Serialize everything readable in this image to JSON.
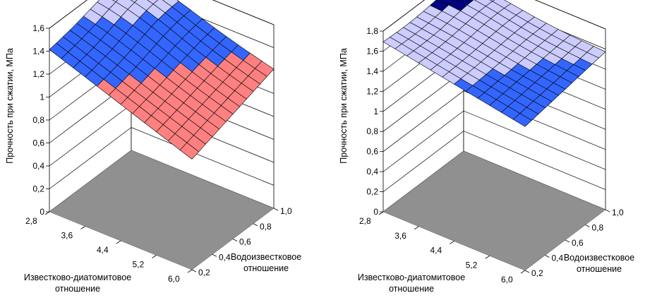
{
  "colors": {
    "floor": "#909090",
    "wall_line": "#000000",
    "grid_line": "#000000",
    "mesh_line": "#000000",
    "band_light": "#ccccff",
    "band_medium": "#3366ff",
    "band_pink": "#ff8080",
    "band_dark": "#000080"
  },
  "chart_data": [
    {
      "type": "surface",
      "title": "",
      "zlabel": "Прочность при сжатии, МПа",
      "xlabel": "Известково-диатомитовое отношение",
      "ylabel": "Водоизвестковое отношение",
      "x_ticks": [
        "2,8",
        "3,6",
        "4,4",
        "5,2",
        "6,0"
      ],
      "y_ticks": [
        "0,2",
        "0,4",
        "0,6",
        "0,8",
        "1,0"
      ],
      "z_ticks": [
        "0",
        "0,2",
        "0,4",
        "0,6",
        "0,8",
        "1",
        "1,2",
        "1,4",
        "1,6"
      ],
      "z_range": [
        0,
        1.6
      ],
      "x_range": [
        2.8,
        6.0
      ],
      "y_range": [
        0.2,
        1.0
      ],
      "grid": true,
      "surface_corners": {
        "x2.8_y0.2": 1.42,
        "x2.8_y1.0": 1.52,
        "x6.0_y0.2": 0.98,
        "x6.0_y1.0": 1.22
      },
      "peak": 1.6,
      "color_bands": [
        "band_light",
        "band_medium",
        "band_pink"
      ]
    },
    {
      "type": "surface",
      "title": "",
      "zlabel": "Прочность при сжатии, МПа",
      "xlabel": "Известково-диатомитовое отношение",
      "ylabel": "Водоизвестковое отношение",
      "x_ticks": [
        "2,8",
        "3,6",
        "4,4",
        "5,2",
        "6,0"
      ],
      "y_ticks": [
        "0,2",
        "0,4",
        "0,6",
        "0,8",
        "1,0"
      ],
      "z_ticks": [
        "0",
        "0,2",
        "0,4",
        "0,6",
        "0,8",
        "1",
        "1,2",
        "1,4",
        "1,6",
        "1,8"
      ],
      "z_range": [
        0,
        1.8
      ],
      "x_range": [
        2.8,
        6.0
      ],
      "y_range": [
        0.2,
        1.0
      ],
      "grid": true,
      "surface_corners": {
        "x2.8_y0.2": 1.7,
        "x2.8_y1.0": 1.63,
        "x6.0_y0.2": 1.45,
        "x6.0_y1.0": 1.58
      },
      "peak": 1.8,
      "color_bands": [
        "band_dark",
        "band_light",
        "band_medium"
      ]
    }
  ]
}
